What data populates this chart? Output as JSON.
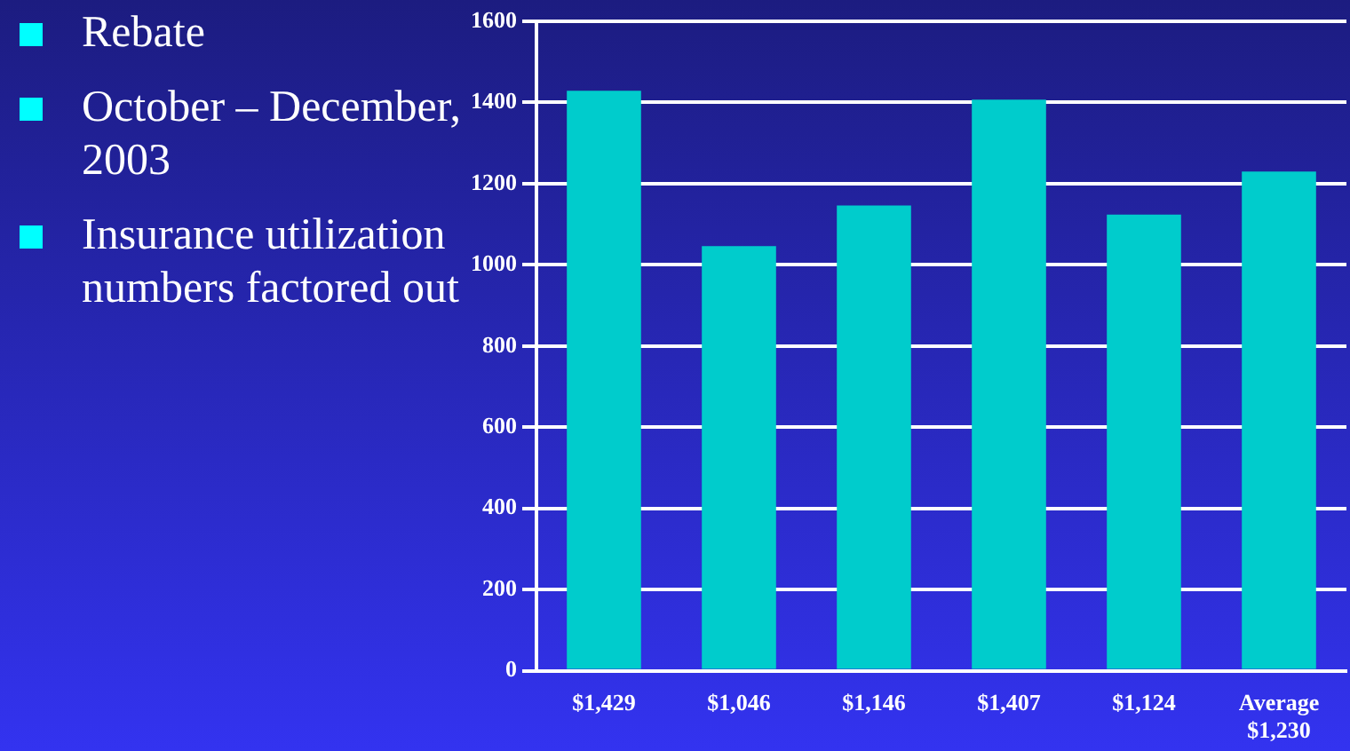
{
  "chart_data": {
    "type": "bar",
    "categories": [
      "$1,429",
      "$1,046",
      "$1,146",
      "$1,407",
      "$1,124",
      "Average $1,230"
    ],
    "values": [
      1429,
      1046,
      1146,
      1407,
      1124,
      1230
    ],
    "color": "#00cccc",
    "ylim": [
      0,
      1600
    ],
    "yticks": [
      0,
      200,
      400,
      600,
      800,
      1000,
      1200,
      1400,
      1600
    ],
    "grid": "y",
    "annotations": [
      "Rebate",
      "October – December, 2003",
      "Insurance utilization numbers factored out"
    ]
  }
}
